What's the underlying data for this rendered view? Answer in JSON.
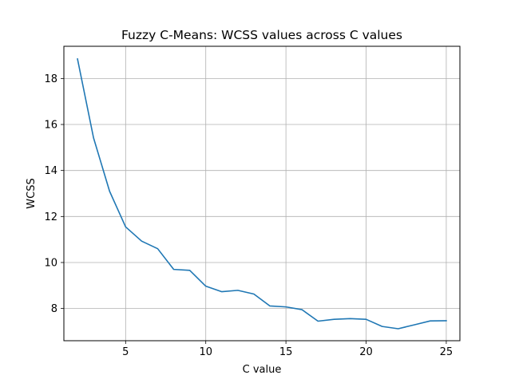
{
  "chart_data": {
    "type": "line",
    "title": "Fuzzy C-Means: WCSS values across C values",
    "xlabel": "C value",
    "ylabel": "WCSS",
    "xlim": [
      1.15,
      25.85
    ],
    "ylim": [
      6.6,
      19.4
    ],
    "xticks": [
      5,
      10,
      15,
      20,
      25
    ],
    "yticks": [
      8,
      10,
      12,
      14,
      16,
      18
    ],
    "grid": true,
    "line_color": "#1f77b4",
    "series": [
      {
        "name": "WCSS",
        "x": [
          2,
          3,
          4,
          5,
          6,
          7,
          8,
          9,
          10,
          11,
          12,
          13,
          14,
          15,
          16,
          17,
          18,
          19,
          20,
          21,
          22,
          23,
          24,
          25
        ],
        "values": [
          18.85,
          15.42,
          13.1,
          11.55,
          10.93,
          10.6,
          9.7,
          9.66,
          8.97,
          8.73,
          8.79,
          8.63,
          8.11,
          8.07,
          7.95,
          7.45,
          7.53,
          7.56,
          7.53,
          7.22,
          7.12,
          7.29,
          7.46,
          7.47
        ]
      }
    ]
  }
}
